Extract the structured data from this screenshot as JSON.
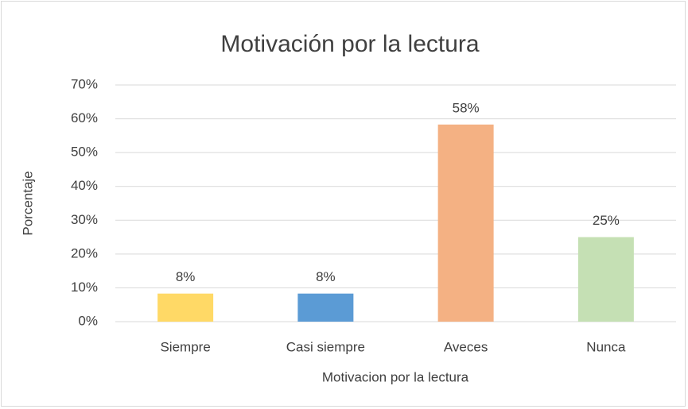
{
  "chart_data": {
    "type": "bar",
    "title": "Motivación por la lectura",
    "x_label": "Motivacion por la lectura",
    "y_label": "Porcentaje",
    "categories": [
      "Siempre",
      "Casi siempre",
      "Aveces",
      "Nunca"
    ],
    "values": [
      8.3,
      8.3,
      58.3,
      25
    ],
    "value_labels": [
      "8%",
      "8%",
      "58%",
      "25%"
    ],
    "colors": [
      "#ffd966",
      "#5b9bd5",
      "#f4b183",
      "#c5e0b4"
    ],
    "ylim": [
      0,
      70
    ],
    "yticks": [
      {
        "value": 0,
        "label": "0%"
      },
      {
        "value": 10,
        "label": "10%"
      },
      {
        "value": 20,
        "label": "20%"
      },
      {
        "value": 30,
        "label": "30%"
      },
      {
        "value": 40,
        "label": "40%"
      },
      {
        "value": 50,
        "label": "50%"
      },
      {
        "value": 60,
        "label": "60%"
      },
      {
        "value": 70,
        "label": "70%"
      }
    ],
    "grid": true
  }
}
